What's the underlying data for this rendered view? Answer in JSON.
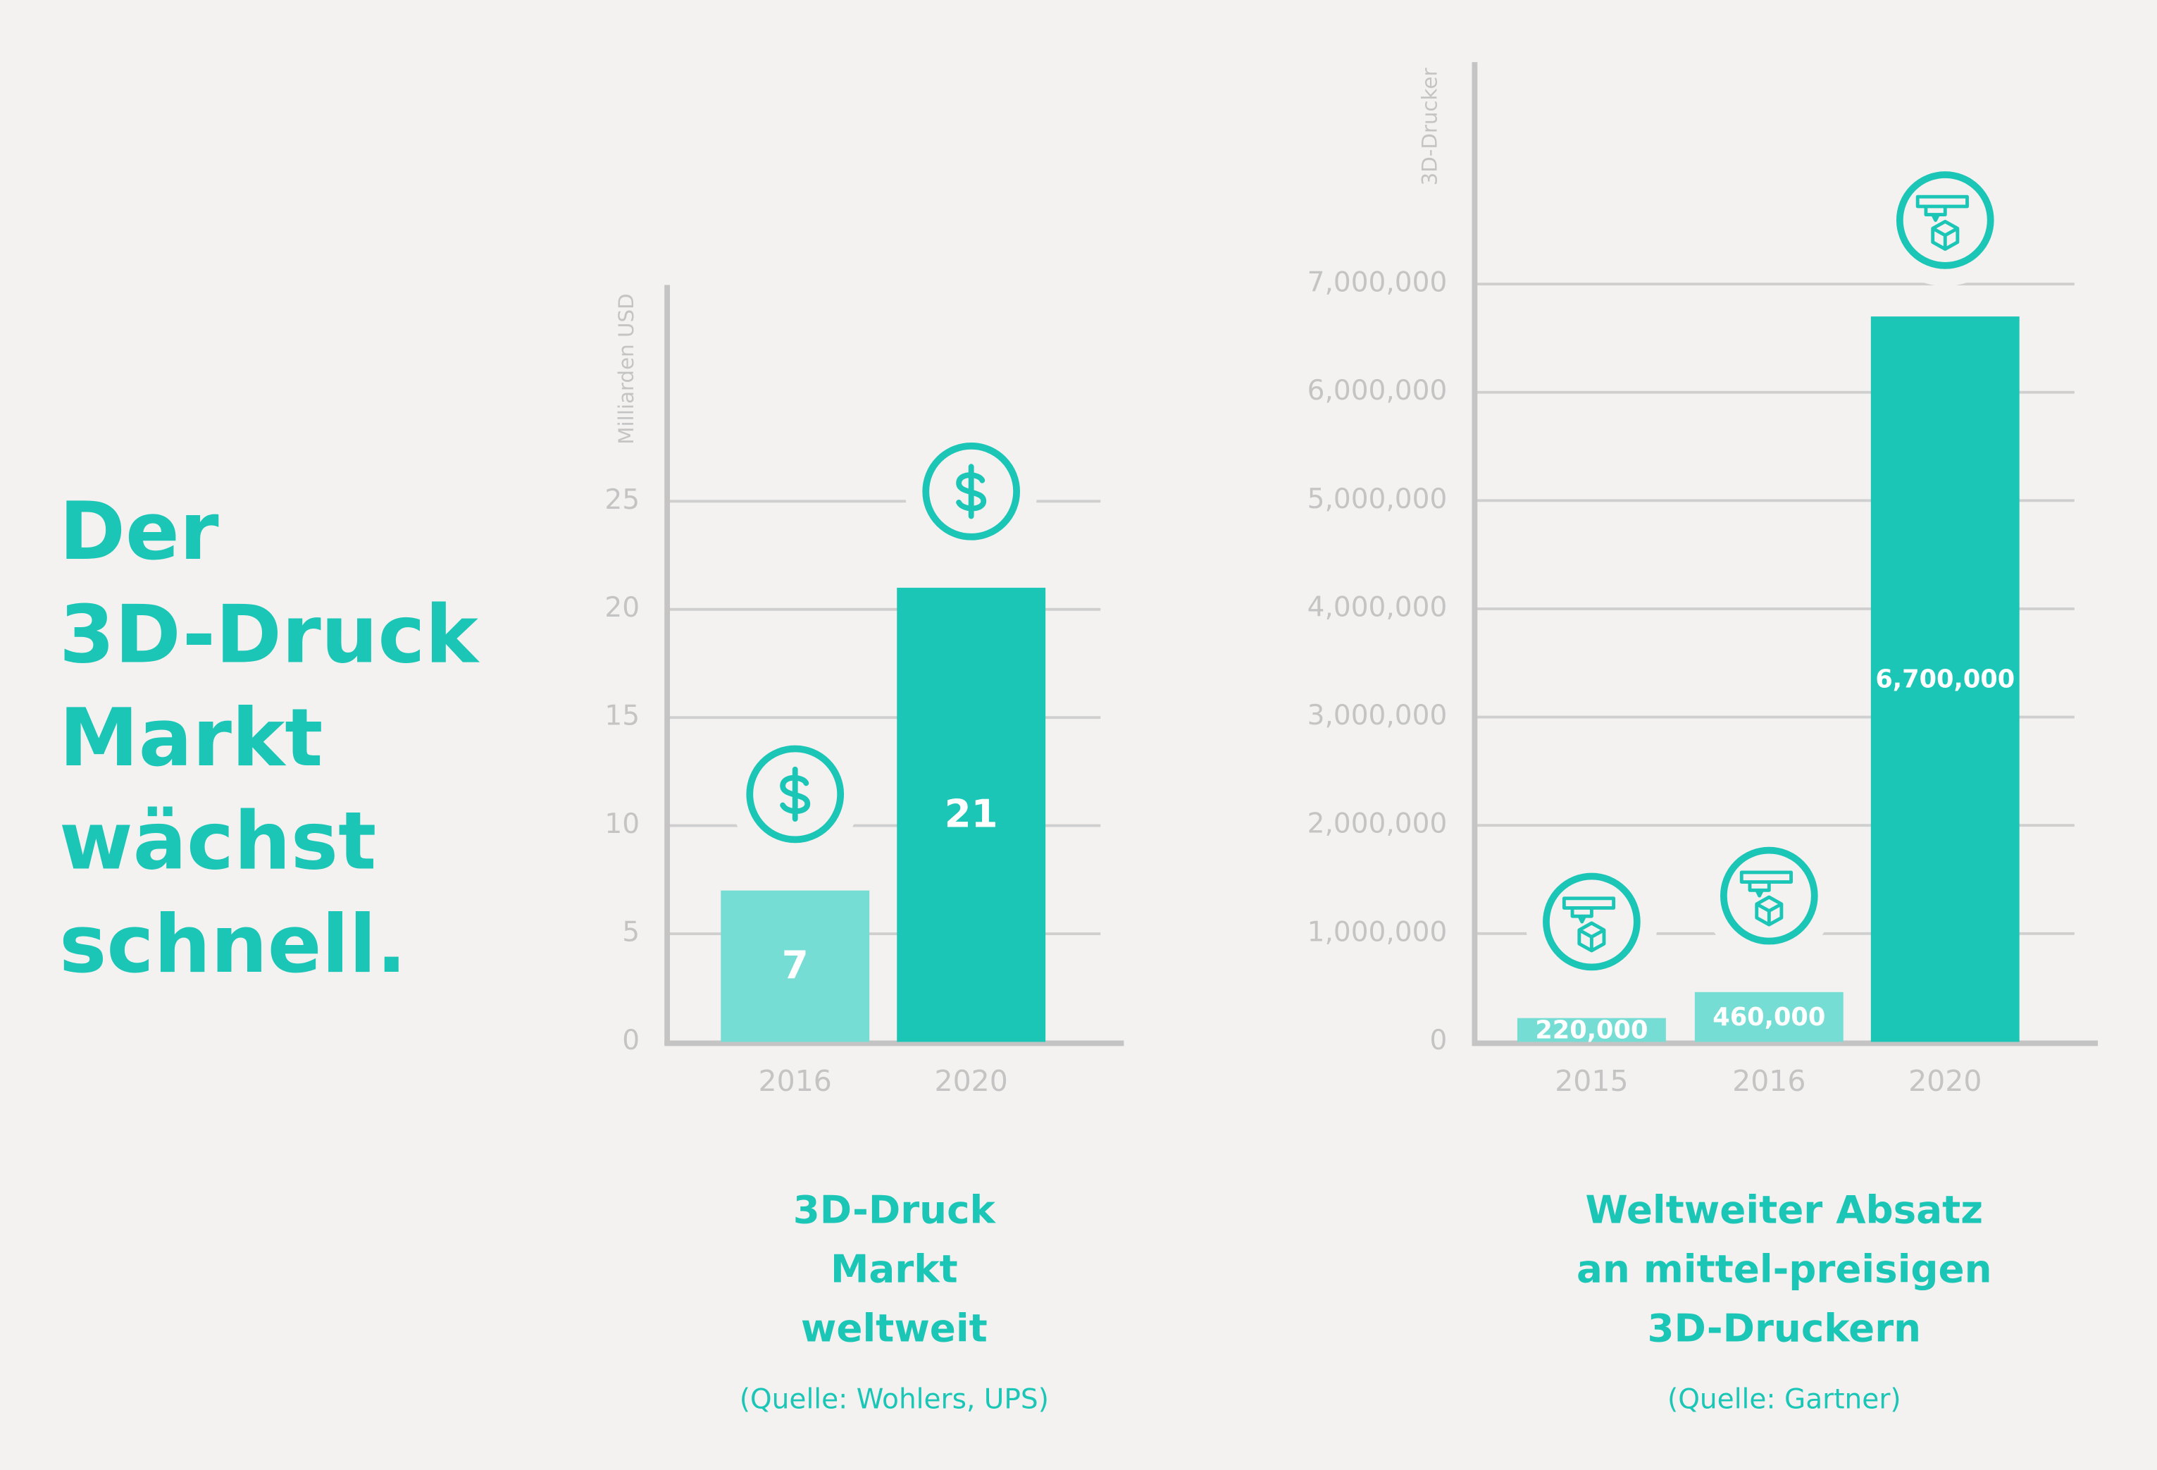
{
  "heading": [
    "Der",
    "3D-Druck",
    "Markt",
    "wächst",
    "schnell."
  ],
  "chart_data": [
    {
      "type": "bar",
      "title": [
        "3D-Druck",
        "Markt",
        "weltweit"
      ],
      "source": "(Quelle: Wohlers, UPS)",
      "y_label": "Milliarden USD",
      "icon": "dollar",
      "categories": [
        "2016",
        "2020"
      ],
      "values": [
        7,
        21
      ],
      "colors": [
        "#76ddd4",
        "#1bc6b6"
      ],
      "ylim": [
        0,
        35
      ],
      "yticks": [
        0,
        5,
        10,
        15,
        20,
        25
      ],
      "grid": true
    },
    {
      "type": "bar",
      "title": [
        "Weltweiter Absatz",
        "an mittel-preisigen",
        "3D-Druckern"
      ],
      "source": "(Quelle: Gartner)",
      "y_label": "3D-Drucker",
      "icon": "printer",
      "categories": [
        "2015",
        "2016",
        "2020"
      ],
      "values": [
        220000,
        460000,
        6700000
      ],
      "value_labels": [
        "220,000",
        "460,000",
        "6,700,000"
      ],
      "colors": [
        "#76ddd4",
        "#76ddd4",
        "#1bc6b6"
      ],
      "ylim": [
        0,
        9050000
      ],
      "yticks": [
        0,
        {
          "value": 1000000,
          "label": "1,000,000"
        },
        {
          "value": 2000000,
          "label": "2,000,000"
        },
        {
          "value": 3000000,
          "label": "3,000,000"
        },
        {
          "value": 4000000,
          "label": "4,000,000"
        },
        {
          "value": 5000000,
          "label": "5,000,000"
        },
        {
          "value": 6000000,
          "label": "6,000,000"
        },
        {
          "value": 7000000,
          "label": "7,000,000"
        }
      ],
      "grid": true
    }
  ]
}
